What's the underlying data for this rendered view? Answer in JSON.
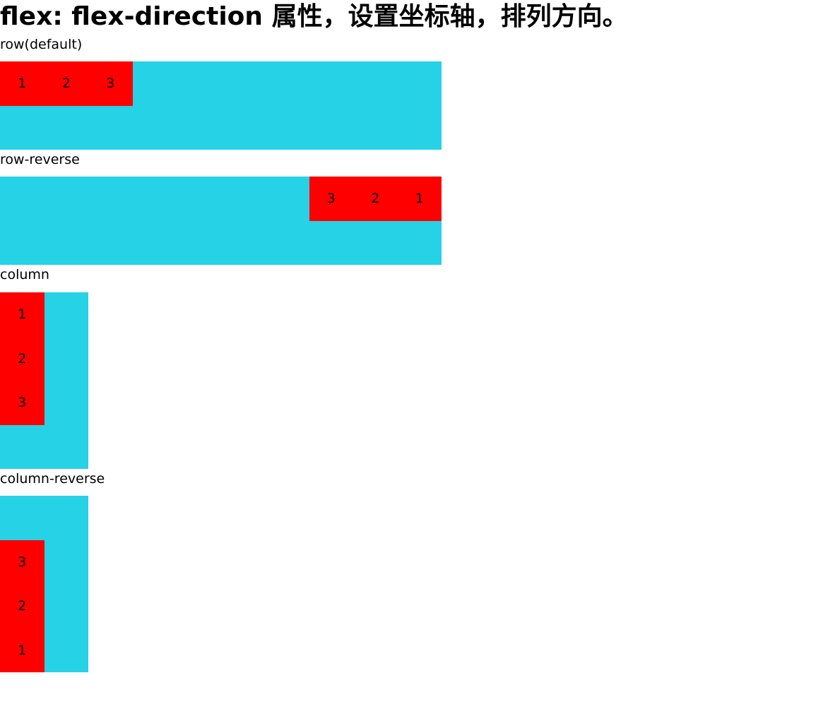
{
  "title": "flex: flex-direction 属性，设置坐标轴，排列方向。",
  "sections": [
    {
      "label": "row(default)",
      "items": [
        "1",
        "2",
        "3"
      ]
    },
    {
      "label": "row-reverse",
      "items": [
        "1",
        "2",
        "3"
      ]
    },
    {
      "label": "column",
      "items": [
        "1",
        "2",
        "3"
      ]
    },
    {
      "label": "column-reverse",
      "items": [
        "1",
        "2",
        "3"
      ]
    }
  ],
  "colors": {
    "container": "#26d2e6",
    "item": "#ff0000",
    "text": "#000000",
    "background": "#ffffff"
  }
}
